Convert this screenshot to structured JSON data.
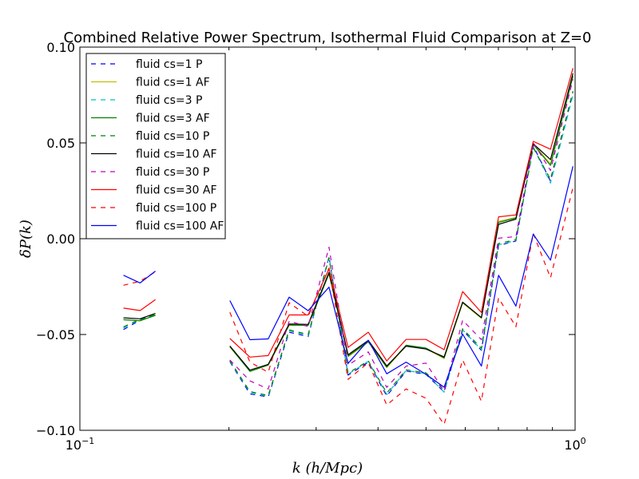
{
  "chart_data": {
    "type": "line",
    "title": "Combined Relative Power Spectrum, Isothermal Fluid Comparison at Z=0",
    "xlabel": "k (h/Mpc)",
    "ylabel": "δP(k)",
    "xscale": "log",
    "xlim": [
      0.1,
      1.0
    ],
    "ylim": [
      -0.1,
      0.1
    ],
    "x_ticks": [
      {
        "value": 0.1,
        "base": "10",
        "exp": "−1"
      },
      {
        "value": 1.0,
        "base": "10",
        "exp": "0"
      }
    ],
    "y_ticks": [
      {
        "value": 0.1,
        "label": "0.10"
      },
      {
        "value": 0.05,
        "label": "0.05"
      },
      {
        "value": 0.0,
        "label": "0.00"
      },
      {
        "value": -0.05,
        "label": "−0.05"
      },
      {
        "value": -0.1,
        "label": "−0.10"
      }
    ],
    "grid": false,
    "legend_position": "top-left",
    "x": [
      0.1225,
      0.1323,
      0.1421,
      0.1862,
      0.2009,
      0.2205,
      0.2401,
      0.2646,
      0.2891,
      0.3185,
      0.348,
      0.3823,
      0.4166,
      0.4557,
      0.4998,
      0.5439,
      0.5929,
      0.6468,
      0.7007,
      0.7595,
      0.8232,
      0.8918,
      0.9899
    ],
    "series": [
      {
        "name": "fluid cs=1 P",
        "color": "#0000ff",
        "dashed": true,
        "values": [
          -0.0474,
          -0.0425,
          -0.0395,
          null,
          -0.0642,
          -0.081,
          -0.0826,
          -0.0488,
          -0.0511,
          -0.0094,
          -0.0712,
          -0.0644,
          -0.0821,
          -0.0691,
          -0.0708,
          -0.08,
          -0.0477,
          -0.0583,
          -0.0035,
          -0.0012,
          0.0485,
          0.03,
          0.0761
        ]
      },
      {
        "name": "fluid cs=1 AF",
        "color": "#bfbf00",
        "dashed": false,
        "values": [
          -0.0422,
          -0.0429,
          -0.0398,
          null,
          -0.0566,
          -0.0691,
          -0.066,
          -0.0453,
          -0.0451,
          -0.018,
          -0.0616,
          -0.054,
          -0.0673,
          -0.0559,
          -0.0574,
          -0.0625,
          -0.0336,
          -0.0415,
          0.0091,
          0.011,
          0.0495,
          0.039,
          0.0844
        ]
      },
      {
        "name": "fluid cs=3 P",
        "color": "#00bfbf",
        "dashed": true,
        "values": [
          -0.0466,
          -0.0422,
          -0.0396,
          null,
          -0.0639,
          -0.0802,
          -0.0822,
          -0.048,
          -0.0505,
          -0.0096,
          -0.0707,
          -0.064,
          -0.0813,
          -0.0688,
          -0.0704,
          -0.0801,
          -0.0475,
          -0.058,
          -0.0032,
          -0.0009,
          0.048,
          0.029,
          0.075
        ]
      },
      {
        "name": "fluid cs=3 AF",
        "color": "#008000",
        "dashed": false,
        "values": [
          -0.0423,
          -0.0428,
          -0.04,
          null,
          -0.0563,
          -0.0693,
          -0.0659,
          -0.045,
          -0.0453,
          -0.0183,
          -0.0612,
          -0.0537,
          -0.067,
          -0.0556,
          -0.0571,
          -0.0622,
          -0.0333,
          -0.0412,
          0.0085,
          0.0108,
          0.0492,
          0.0383,
          0.085
        ]
      },
      {
        "name": "fluid cs=10 P",
        "color": "#008000",
        "dashed": true,
        "values": [
          -0.046,
          -0.042,
          -0.0398,
          null,
          -0.0636,
          -0.0798,
          -0.0818,
          -0.0476,
          -0.05,
          -0.01,
          -0.0702,
          -0.0638,
          -0.0806,
          -0.0684,
          -0.07,
          -0.079,
          -0.047,
          -0.0572,
          -0.0025,
          -0.0005,
          0.0475,
          0.031,
          0.077
        ]
      },
      {
        "name": "fluid cs=10 AF",
        "color": "#000000",
        "dashed": false,
        "values": [
          -0.0413,
          -0.0418,
          -0.039,
          null,
          -0.056,
          -0.0686,
          -0.0656,
          -0.0445,
          -0.0447,
          -0.0176,
          -0.0606,
          -0.0531,
          -0.0664,
          -0.0561,
          -0.0576,
          -0.0617,
          -0.0331,
          -0.0412,
          0.0075,
          0.0102,
          0.0496,
          0.0413,
          0.0863
        ]
      },
      {
        "name": "fluid cs=30 P",
        "color": "#bf00bf",
        "dashed": true,
        "values": [
          null,
          null,
          null,
          null,
          -0.0633,
          -0.0742,
          -0.0784,
          -0.0431,
          -0.0458,
          -0.0044,
          -0.066,
          -0.0591,
          -0.0776,
          -0.0665,
          -0.0649,
          -0.0796,
          -0.0426,
          -0.0527,
          0.0003,
          0.0011,
          0.0502,
          0.0356,
          0.0832
        ]
      },
      {
        "name": "fluid cs=30 AF",
        "color": "#ff0000",
        "dashed": false,
        "values": [
          -0.0362,
          -0.0375,
          -0.0318,
          null,
          -0.0521,
          -0.0618,
          -0.061,
          -0.0398,
          -0.0398,
          -0.0157,
          -0.0567,
          -0.0488,
          -0.0638,
          -0.0526,
          -0.0526,
          -0.0579,
          -0.0276,
          -0.0385,
          0.0114,
          0.0124,
          0.0508,
          0.0467,
          0.089
        ]
      },
      {
        "name": "fluid cs=100 P",
        "color": "#ff0000",
        "dashed": true,
        "values": [
          -0.0243,
          -0.0222,
          -0.0172,
          null,
          -0.0384,
          -0.0644,
          -0.0697,
          -0.0334,
          -0.0405,
          -0.0153,
          -0.0734,
          -0.0647,
          -0.0868,
          -0.0784,
          -0.0833,
          -0.0969,
          -0.0633,
          -0.0848,
          -0.0309,
          -0.046,
          0.0028,
          -0.0204,
          0.0267
        ]
      },
      {
        "name": "fluid cs=100 AF",
        "color": "#0000ff",
        "dashed": false,
        "values": [
          -0.0191,
          -0.0231,
          -0.0169,
          null,
          -0.0323,
          -0.0527,
          -0.0523,
          -0.0305,
          -0.0376,
          -0.0253,
          -0.0651,
          -0.053,
          -0.0705,
          -0.0644,
          -0.0708,
          -0.0775,
          -0.0498,
          -0.0665,
          -0.0191,
          -0.0352,
          0.0024,
          -0.0112,
          0.0378
        ]
      }
    ]
  }
}
